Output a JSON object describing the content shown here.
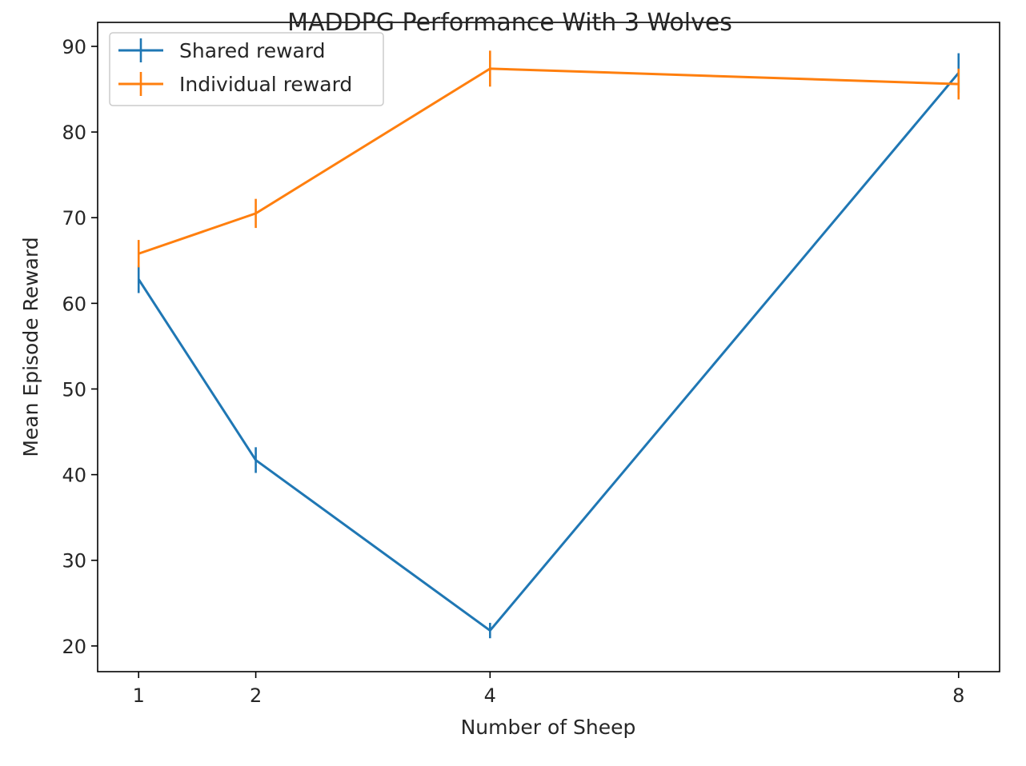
{
  "chart_data": {
    "type": "line",
    "title": "MADDPG Performance With 3 Wolves",
    "xlabel": "Number of Sheep",
    "ylabel": "Mean Episode Reward",
    "x": [
      1,
      2,
      4,
      8
    ],
    "xticks": [
      1,
      2,
      4,
      8
    ],
    "xlim": [
      0.65,
      8.35
    ],
    "yticks": [
      20,
      30,
      40,
      50,
      60,
      70,
      80,
      90
    ],
    "ylim": [
      17,
      92.8
    ],
    "grid": false,
    "legend_position": "top-left",
    "series": [
      {
        "name": "Shared reward",
        "color": "#1f77b4",
        "values": [
          62.8,
          41.7,
          21.8,
          86.9
        ],
        "errors": [
          1.6,
          1.5,
          0.9,
          2.3
        ]
      },
      {
        "name": "Individual reward",
        "color": "#ff7f0e",
        "values": [
          65.8,
          70.5,
          87.4,
          85.6
        ],
        "errors": [
          1.6,
          1.7,
          2.1,
          1.8
        ]
      }
    ]
  }
}
